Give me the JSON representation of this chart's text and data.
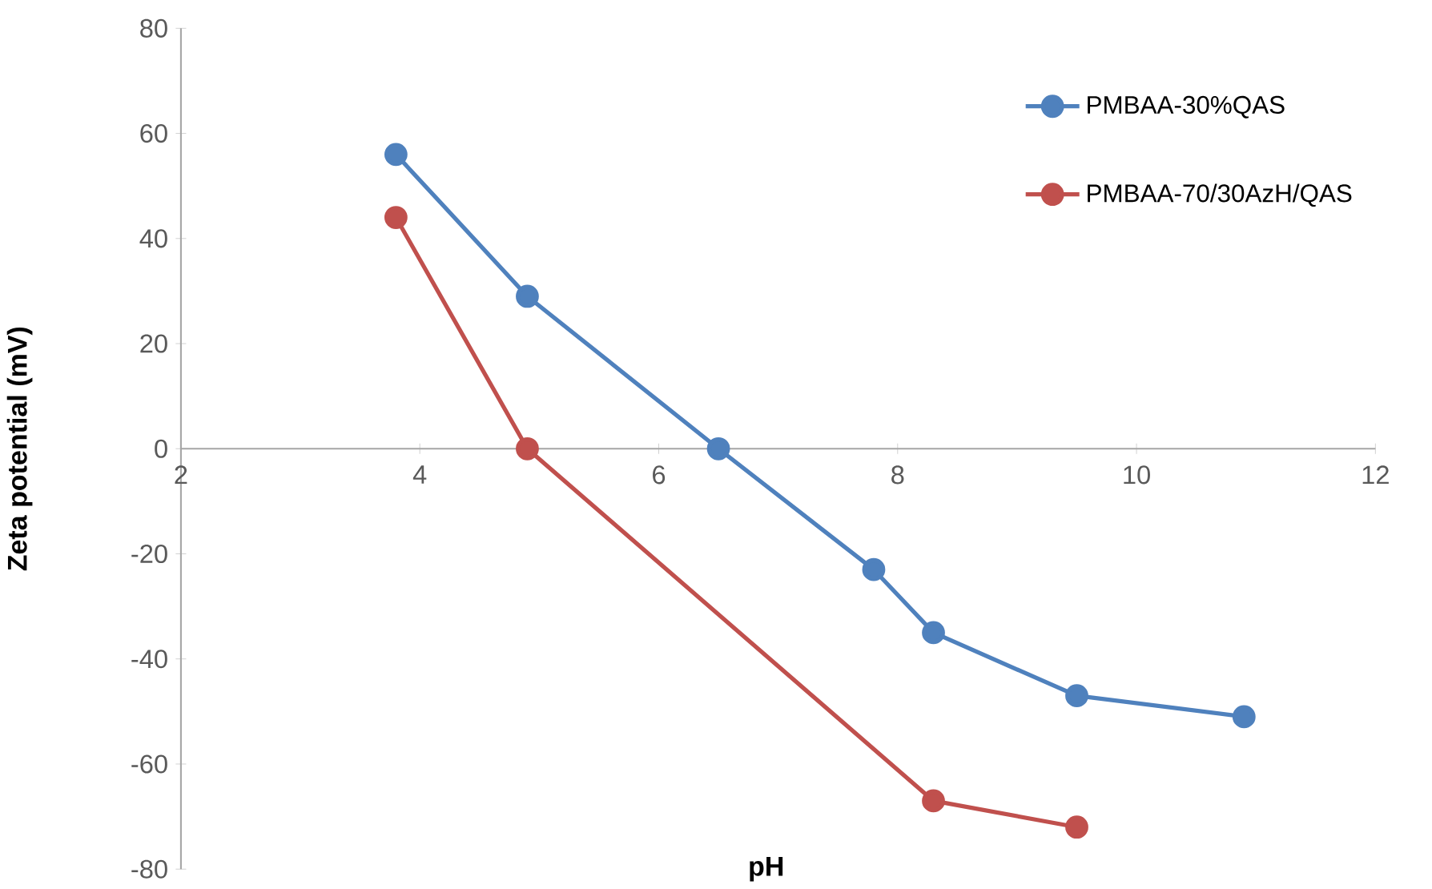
{
  "chart_data": {
    "type": "line",
    "xlabel": "pH",
    "ylabel": "Zeta potential (mV)",
    "series": [
      {
        "name": "PMBAA-30%QAS",
        "color": "#4f81bd",
        "x": [
          3.8,
          4.9,
          6.5,
          7.8,
          8.3,
          9.5,
          10.9
        ],
        "values": [
          56,
          29,
          0,
          -23,
          -35,
          -47,
          -51
        ]
      },
      {
        "name": "PMBAA-70/30AzH/QAS",
        "color": "#c0504d",
        "x": [
          3.8,
          4.9,
          8.3,
          9.5
        ],
        "values": [
          44,
          0,
          -67,
          -72
        ]
      }
    ],
    "xlim": [
      2,
      12
    ],
    "xticks": [
      2,
      4,
      6,
      8,
      10,
      12
    ],
    "ylim": [
      -80,
      80
    ],
    "yticks": [
      -80,
      -60,
      -40,
      -20,
      0,
      20,
      40,
      60,
      80
    ],
    "legend": "top right",
    "marker": "circle",
    "line_style": "solid",
    "grid": false
  }
}
